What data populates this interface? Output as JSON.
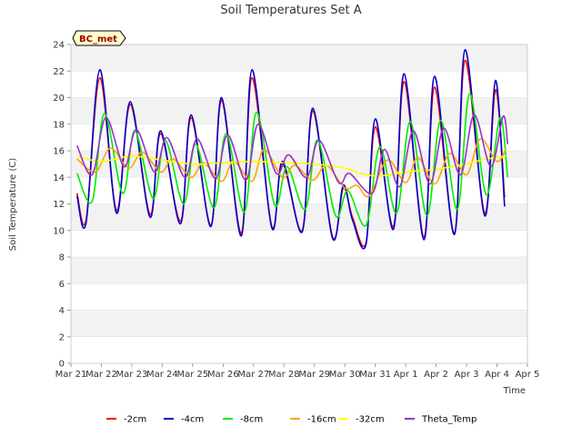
{
  "chart_data": {
    "type": "line",
    "title": "Soil Temperatures Set A",
    "xlabel": "Time",
    "ylabel": "Soil Temperature (C)",
    "badge": "BC_met",
    "ylim": [
      0,
      24
    ],
    "yticks": [
      0,
      2,
      4,
      6,
      8,
      10,
      12,
      14,
      16,
      18,
      20,
      22,
      24
    ],
    "xlim": [
      0,
      15
    ],
    "xticks": [
      {
        "x": 0,
        "label": "Mar 21"
      },
      {
        "x": 1,
        "label": "Mar 22"
      },
      {
        "x": 2,
        "label": "Mar 23"
      },
      {
        "x": 3,
        "label": "Mar 24"
      },
      {
        "x": 4,
        "label": "Mar 25"
      },
      {
        "x": 5,
        "label": "Mar 26"
      },
      {
        "x": 6,
        "label": "Mar 27"
      },
      {
        "x": 7,
        "label": "Mar 28"
      },
      {
        "x": 8,
        "label": "Mar 29"
      },
      {
        "x": 9,
        "label": "Mar 30"
      },
      {
        "x": 10,
        "label": "Mar 31"
      },
      {
        "x": 11,
        "label": "Apr 1"
      },
      {
        "x": 12,
        "label": "Apr 2"
      },
      {
        "x": 13,
        "label": "Apr 3"
      },
      {
        "x": 14,
        "label": "Apr 4"
      },
      {
        "x": 15,
        "label": "Apr 5"
      }
    ],
    "grid": true,
    "legend_position": "bottom",
    "series": [
      {
        "name": "-2cm",
        "color": "#ff0000",
        "x": [
          0.2,
          0.5,
          0.95,
          1.5,
          1.95,
          2.6,
          2.95,
          3.6,
          3.95,
          4.6,
          4.95,
          5.6,
          5.95,
          6.6,
          6.95,
          7.6,
          7.95,
          8.6,
          8.95,
          9.25,
          9.7,
          10.0,
          10.6,
          10.95,
          11.6,
          11.95,
          12.6,
          12.95,
          13.6,
          13.95,
          14.25
        ],
        "y": [
          12.8,
          10.8,
          21.5,
          11.5,
          19.5,
          11.2,
          17.3,
          10.7,
          18.5,
          10.4,
          19.8,
          9.8,
          21.5,
          10.3,
          15.0,
          10.0,
          19.0,
          9.5,
          13.2,
          11.0,
          9.1,
          17.8,
          10.3,
          21.2,
          9.5,
          20.8,
          9.8,
          22.8,
          11.3,
          20.6,
          12.5
        ]
      },
      {
        "name": "-4cm",
        "color": "#0000cc",
        "x": [
          0.2,
          0.5,
          0.95,
          1.5,
          1.95,
          2.6,
          2.95,
          3.6,
          3.95,
          4.6,
          4.95,
          5.6,
          5.95,
          6.6,
          6.95,
          7.6,
          7.95,
          8.6,
          8.95,
          9.25,
          9.7,
          10.0,
          10.6,
          10.95,
          11.6,
          11.95,
          12.6,
          12.95,
          13.6,
          13.95,
          14.25
        ],
        "y": [
          12.6,
          10.6,
          22.1,
          11.3,
          19.7,
          11.0,
          17.5,
          10.5,
          18.7,
          10.3,
          20.0,
          9.6,
          22.1,
          10.2,
          15.2,
          9.9,
          19.2,
          9.4,
          13.4,
          10.8,
          9.0,
          18.4,
          10.1,
          21.8,
          9.3,
          21.6,
          9.7,
          23.6,
          11.1,
          21.3,
          11.8
        ]
      },
      {
        "name": "-8cm",
        "color": "#00ee00",
        "x": [
          0.2,
          0.7,
          1.1,
          1.7,
          2.1,
          2.7,
          3.1,
          3.7,
          4.1,
          4.7,
          5.1,
          5.7,
          6.1,
          6.7,
          7.1,
          7.7,
          8.1,
          8.7,
          9.1,
          9.7,
          10.15,
          10.7,
          11.15,
          11.7,
          12.15,
          12.7,
          13.1,
          13.65,
          14.1,
          14.35
        ],
        "y": [
          14.3,
          12.2,
          18.8,
          12.8,
          17.5,
          12.4,
          16.8,
          12.0,
          16.5,
          11.7,
          17.3,
          11.4,
          18.9,
          11.9,
          14.8,
          11.6,
          16.8,
          11.1,
          13.0,
          10.4,
          16.3,
          11.3,
          18.2,
          11.1,
          18.3,
          11.6,
          20.3,
          12.7,
          18.5,
          14.0
        ]
      },
      {
        "name": "-16cm",
        "color": "#ffa500",
        "x": [
          0.2,
          0.8,
          1.3,
          1.9,
          2.35,
          2.95,
          3.35,
          3.95,
          4.35,
          4.95,
          5.35,
          5.95,
          6.35,
          6.95,
          7.35,
          7.95,
          8.4,
          9.0,
          9.4,
          9.8,
          10.4,
          11.0,
          11.4,
          11.95,
          12.45,
          13.0,
          13.45,
          14.0,
          14.3
        ],
        "y": [
          15.4,
          14.4,
          16.2,
          14.7,
          15.9,
          14.4,
          15.4,
          14.0,
          15.1,
          13.7,
          15.2,
          13.7,
          16.1,
          14.0,
          14.9,
          13.8,
          14.9,
          13.2,
          13.4,
          12.6,
          15.3,
          13.6,
          15.5,
          13.5,
          15.8,
          14.2,
          16.9,
          15.2,
          16.2
        ]
      },
      {
        "name": "-32cm",
        "color": "#ffff00",
        "x": [
          0.2,
          1.0,
          2.0,
          3.0,
          4.0,
          5.0,
          6.0,
          7.0,
          8.0,
          9.0,
          9.5,
          10.0,
          10.5,
          11.0,
          11.5,
          12.0,
          12.5,
          13.0,
          13.5,
          14.0,
          14.3
        ],
        "y": [
          15.6,
          15.2,
          15.6,
          15.3,
          15.0,
          15.1,
          15.2,
          15.1,
          15.0,
          14.7,
          14.3,
          14.1,
          14.2,
          14.4,
          14.5,
          14.6,
          14.8,
          15.0,
          15.3,
          15.5,
          15.6
        ]
      },
      {
        "name": "Theta_Temp",
        "color": "#9932cc",
        "x": [
          0.2,
          0.7,
          1.15,
          1.75,
          2.15,
          2.75,
          3.15,
          3.75,
          4.15,
          4.75,
          5.15,
          5.75,
          6.15,
          6.75,
          7.15,
          7.75,
          8.15,
          8.8,
          9.15,
          9.9,
          10.3,
          10.8,
          11.25,
          11.8,
          12.25,
          12.8,
          13.25,
          13.8,
          14.2,
          14.35
        ],
        "y": [
          16.4,
          14.2,
          18.5,
          14.8,
          17.6,
          14.4,
          17.0,
          14.0,
          16.9,
          13.9,
          17.2,
          13.8,
          18.0,
          14.3,
          15.7,
          14.0,
          16.8,
          13.6,
          14.3,
          12.8,
          16.1,
          13.3,
          17.5,
          13.5,
          17.7,
          14.2,
          18.7,
          14.8,
          18.6,
          16.5
        ]
      }
    ]
  }
}
